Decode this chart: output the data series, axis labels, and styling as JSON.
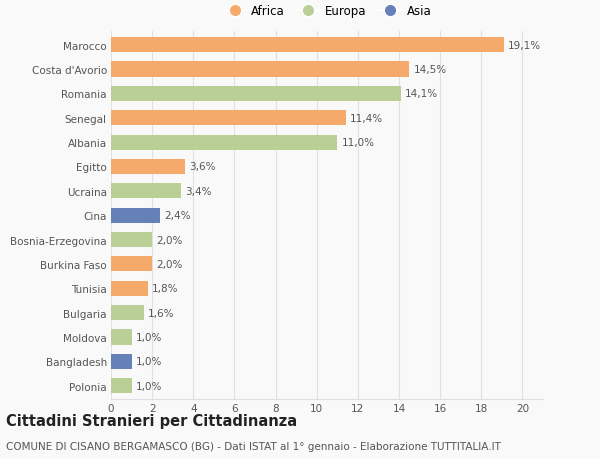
{
  "categories": [
    "Polonia",
    "Bangladesh",
    "Moldova",
    "Bulgaria",
    "Tunisia",
    "Burkina Faso",
    "Bosnia-Erzegovina",
    "Cina",
    "Ucraina",
    "Egitto",
    "Albania",
    "Senegal",
    "Romania",
    "Costa d'Avorio",
    "Marocco"
  ],
  "values": [
    1.0,
    1.0,
    1.0,
    1.6,
    1.8,
    2.0,
    2.0,
    2.4,
    3.4,
    3.6,
    11.0,
    11.4,
    14.1,
    14.5,
    19.1
  ],
  "continents": [
    "Europa",
    "Asia",
    "Europa",
    "Europa",
    "Africa",
    "Africa",
    "Europa",
    "Asia",
    "Europa",
    "Africa",
    "Europa",
    "Africa",
    "Europa",
    "Africa",
    "Africa"
  ],
  "labels": [
    "1,0%",
    "1,0%",
    "1,0%",
    "1,6%",
    "1,8%",
    "2,0%",
    "2,0%",
    "2,4%",
    "3,4%",
    "3,6%",
    "11,0%",
    "11,4%",
    "14,1%",
    "14,5%",
    "19,1%"
  ],
  "colors": {
    "Africa": "#F5A96B",
    "Europa": "#BACF96",
    "Asia": "#6680B8"
  },
  "title": "Cittadini Stranieri per Cittadinanza",
  "subtitle": "COMUNE DI CISANO BERGAMASCO (BG) - Dati ISTAT al 1° gennaio - Elaborazione TUTTITALIA.IT",
  "xlim": [
    0,
    21
  ],
  "xticks": [
    0,
    2,
    4,
    6,
    8,
    10,
    12,
    14,
    16,
    18,
    20
  ],
  "background_color": "#f9f9f9",
  "bar_height": 0.62,
  "grid_color": "#e0e0e0",
  "title_fontsize": 10.5,
  "subtitle_fontsize": 7.5,
  "tick_fontsize": 7.5,
  "label_fontsize": 7.5,
  "legend_fontsize": 8.5
}
